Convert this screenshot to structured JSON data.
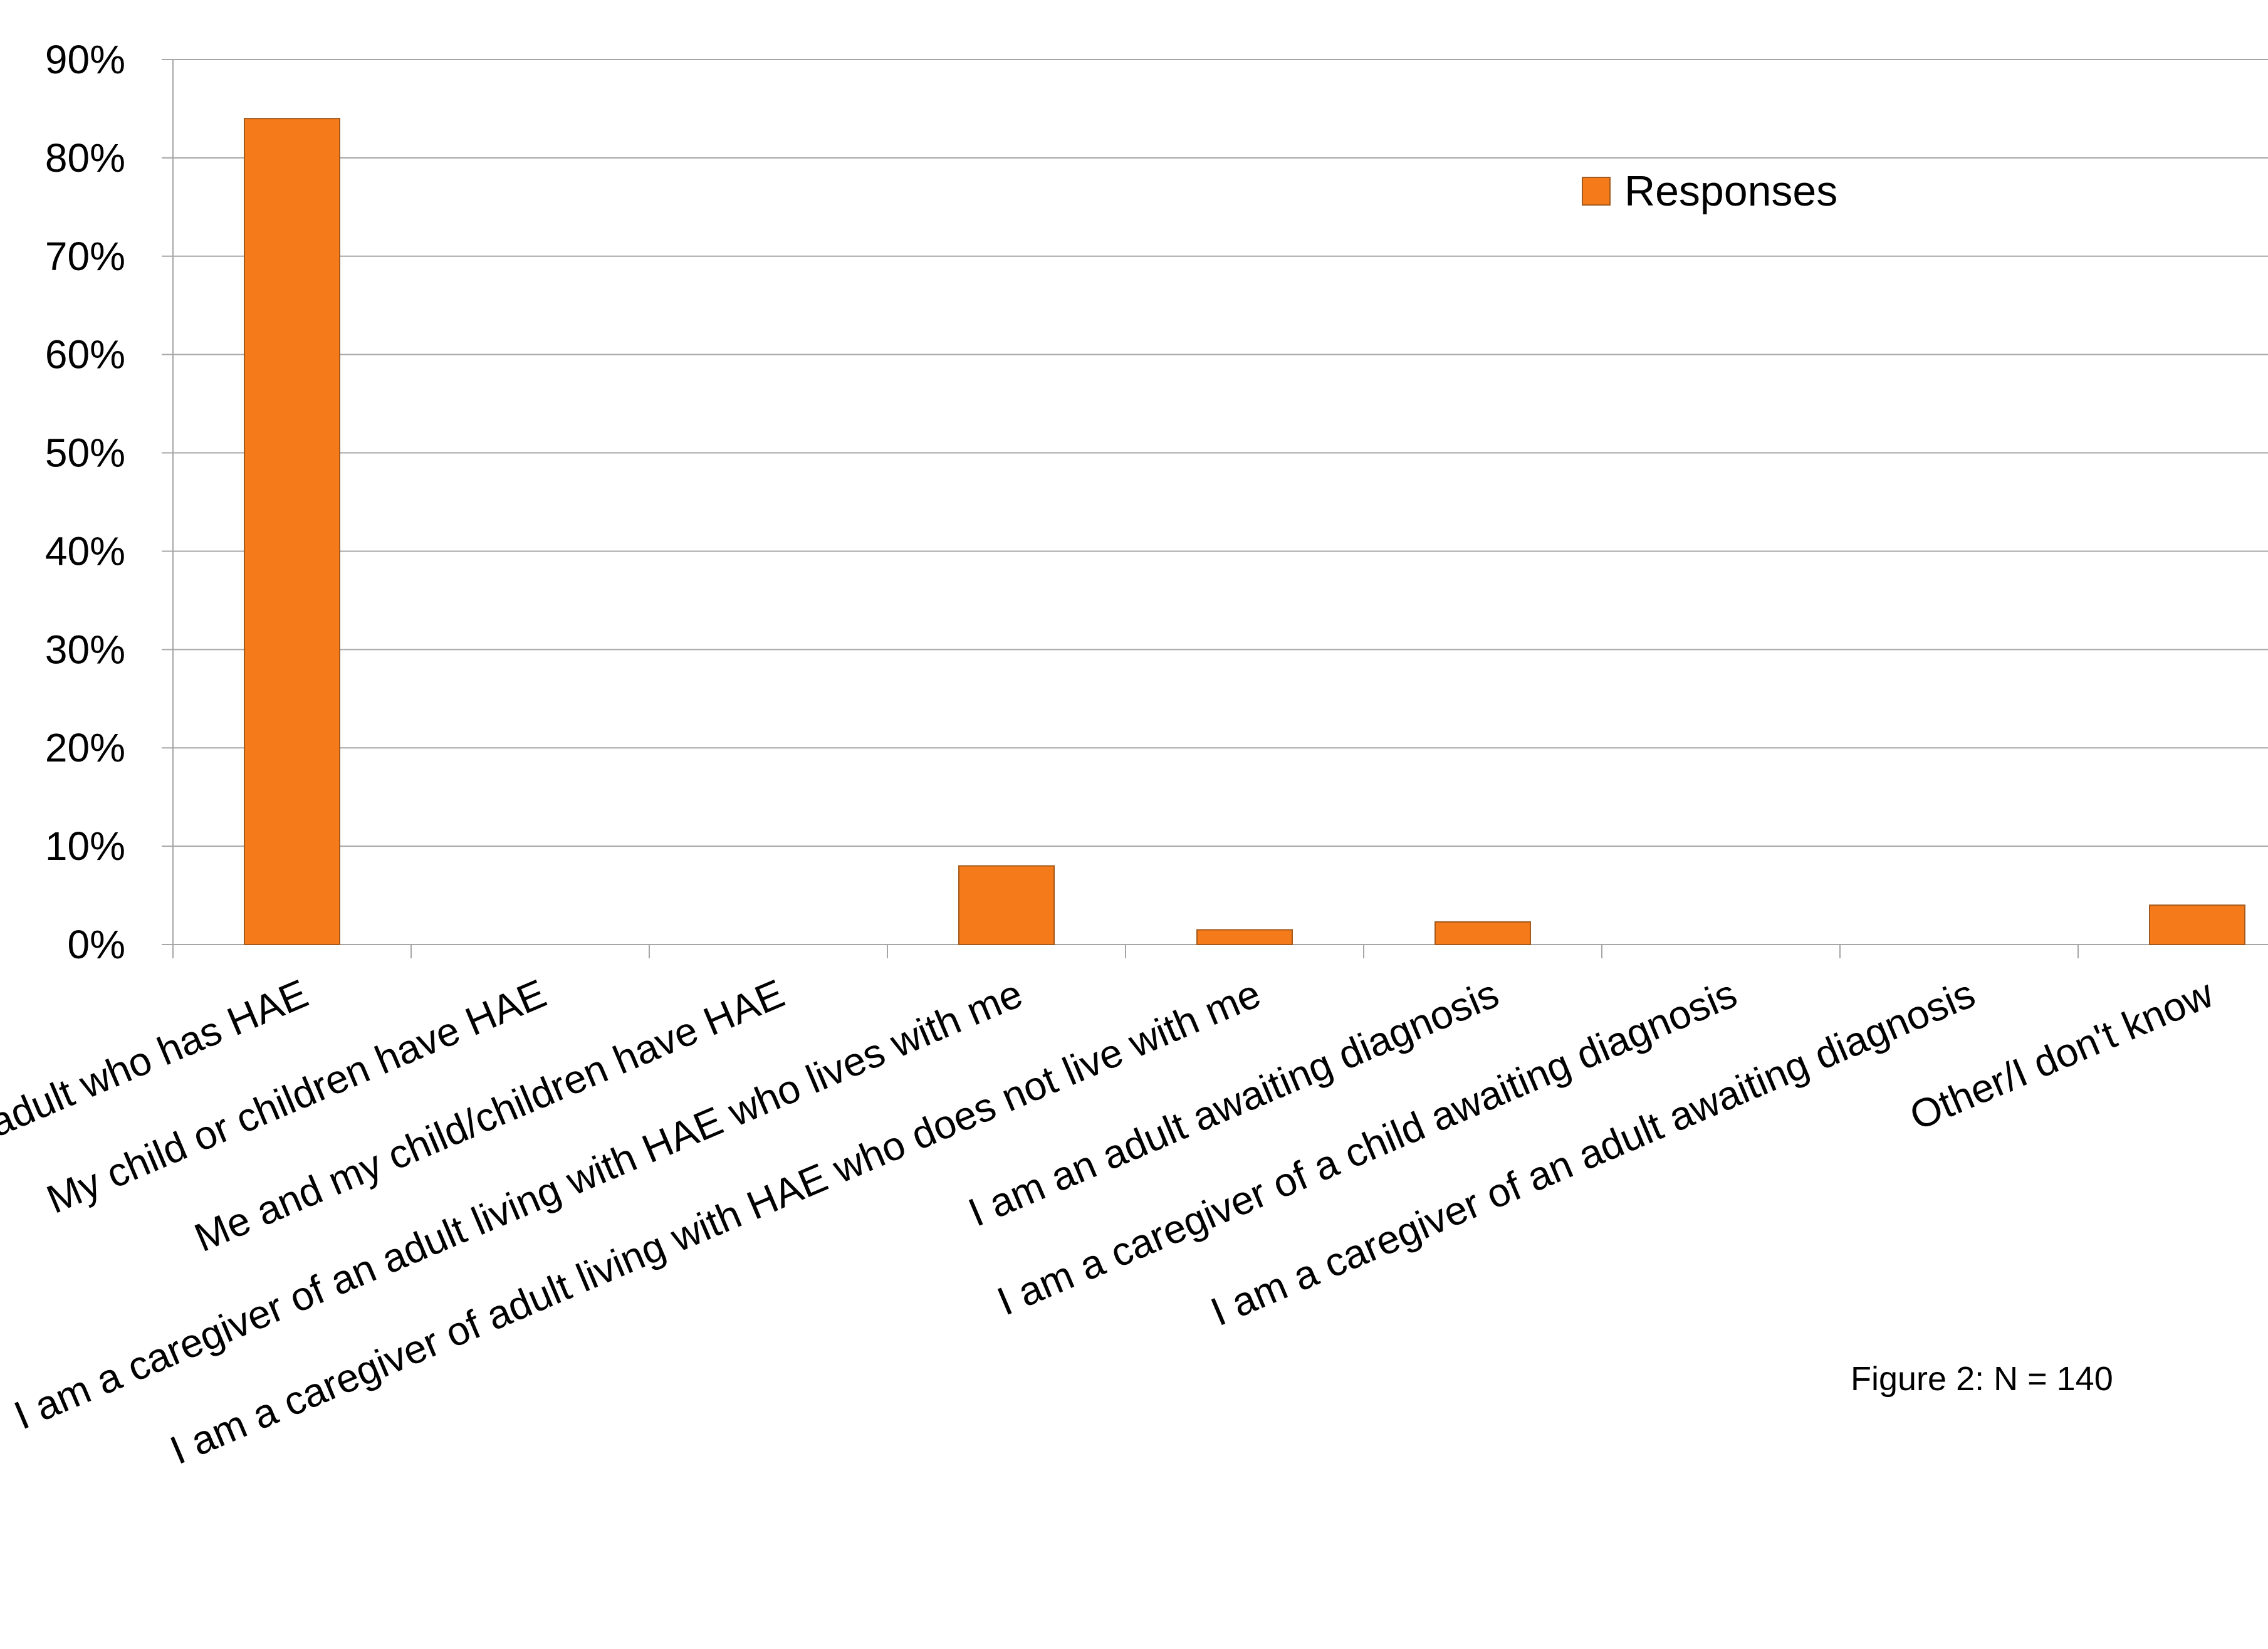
{
  "chart_data": {
    "type": "bar",
    "categories": [
      "I am an adult who has HAE",
      "My child or children have HAE",
      "Me and my child/children have HAE",
      "I am a caregiver of an adult living with HAE who lives with me",
      "I am a caregiver of adult living with HAE who does not live with me",
      "I am an adult awaiting diagnosis",
      "I am a caregiver of a child awaiting diagnosis",
      "I am a caregiver of an adult awaiting diagnosis",
      "Other/I don't know"
    ],
    "series": [
      {
        "name": "Responses",
        "values": [
          84,
          0,
          0,
          8,
          1.5,
          2.3,
          0,
          0,
          4
        ],
        "color": "#F47A1A"
      }
    ],
    "yticks": [
      "0%",
      "10%",
      "20%",
      "30%",
      "40%",
      "50%",
      "60%",
      "70%",
      "80%",
      "90%"
    ],
    "ylim": [
      0,
      90
    ],
    "grid": true,
    "legend_position": "top-right",
    "annotation": "Figure 2: N = 140"
  }
}
